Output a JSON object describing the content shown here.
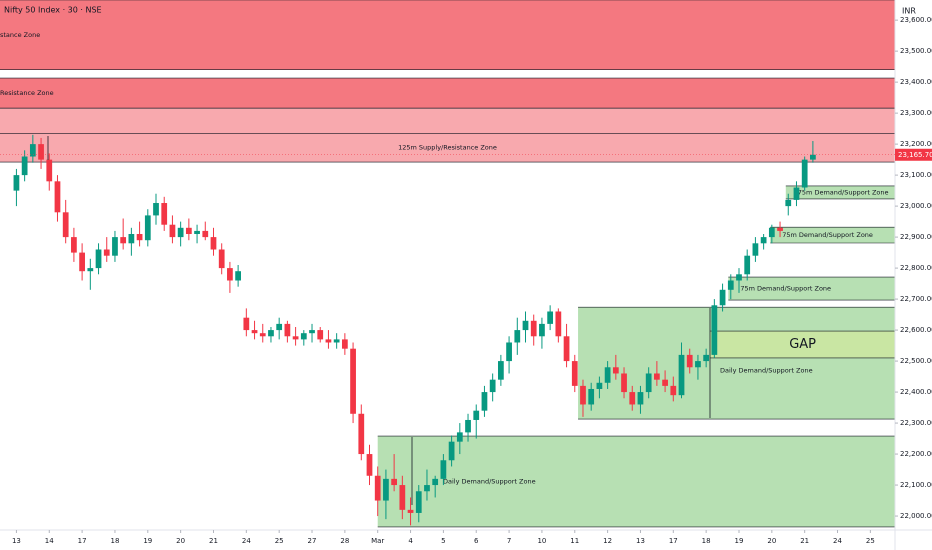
{
  "chart_data": {
    "type": "candlestick",
    "title": "Nifty 50 Index · 30 · NSE",
    "currency": "INR",
    "ylim": [
      21955,
      23665
    ],
    "xlim": [
      -2,
      107
    ],
    "up_color": "#089981",
    "down_color": "#f23645",
    "yticks": [
      {
        "value": 22000,
        "label": "22,000.00"
      },
      {
        "value": 22100,
        "label": "22,100.00"
      },
      {
        "value": 22200,
        "label": "22,200.00"
      },
      {
        "value": 22300,
        "label": "22,300.00"
      },
      {
        "value": 22400,
        "label": "22,400.00"
      },
      {
        "value": 22500,
        "label": "22,500.00"
      },
      {
        "value": 22600,
        "label": "22,600.00"
      },
      {
        "value": 22700,
        "label": "22,700.00"
      },
      {
        "value": 22800,
        "label": "22,800.00"
      },
      {
        "value": 22900,
        "label": "22,900.00"
      },
      {
        "value": 23000,
        "label": "23,000.00"
      },
      {
        "value": 23100,
        "label": "23,100.00"
      },
      {
        "value": 23200,
        "label": "23,200.00"
      },
      {
        "value": 23300,
        "label": "23,300.00"
      },
      {
        "value": 23400,
        "label": "23,400.00"
      },
      {
        "value": 23500,
        "label": "23,500.00"
      },
      {
        "value": 23600,
        "label": "23,600.00"
      }
    ],
    "xticks": [
      {
        "value": 0,
        "label": "13"
      },
      {
        "value": 4,
        "label": "14"
      },
      {
        "value": 8,
        "label": "17"
      },
      {
        "value": 12,
        "label": "18"
      },
      {
        "value": 16,
        "label": "19"
      },
      {
        "value": 20,
        "label": "20"
      },
      {
        "value": 24,
        "label": "21"
      },
      {
        "value": 28,
        "label": "24"
      },
      {
        "value": 32,
        "label": "25"
      },
      {
        "value": 36,
        "label": "27"
      },
      {
        "value": 40,
        "label": "28"
      },
      {
        "value": 44,
        "label": "Mar"
      },
      {
        "value": 48,
        "label": "4"
      },
      {
        "value": 52,
        "label": "5"
      },
      {
        "value": 56,
        "label": "6"
      },
      {
        "value": 60,
        "label": "7"
      },
      {
        "value": 64,
        "label": "10"
      },
      {
        "value": 68,
        "label": "11"
      },
      {
        "value": 72,
        "label": "12"
      },
      {
        "value": 76,
        "label": "13"
      },
      {
        "value": 80,
        "label": "17"
      },
      {
        "value": 84,
        "label": "18"
      },
      {
        "value": 88,
        "label": "19"
      },
      {
        "value": 92,
        "label": "20"
      },
      {
        "value": 96,
        "label": "21"
      },
      {
        "value": 100,
        "label": "24"
      },
      {
        "value": 104,
        "label": "25"
      }
    ],
    "last_price": {
      "value": 23165.7,
      "label": "23,165.70"
    },
    "zones": [
      {
        "lo": 23440,
        "hi": 23665,
        "x0": -2,
        "color": "#f47880",
        "label": "stance Zone"
      },
      {
        "lo": 23316,
        "hi": 23413,
        "x0": -2,
        "color": "#f47880",
        "label": "Resistance Zone"
      },
      {
        "lo": 23235,
        "hi": 23316,
        "x0": -2,
        "color": "#f8a9ae"
      },
      {
        "lo": 23142,
        "hi": 23235,
        "x0": -2,
        "color": "#f8a9ae",
        "label": "125m Supply/Resistance Zone"
      },
      {
        "lo": 23023,
        "hi": 23065,
        "x0": 93.7,
        "color": "#b7e0b3",
        "label": "75m Demand/Support Zone"
      },
      {
        "lo": 22881,
        "hi": 22932,
        "x0": 91.8,
        "color": "#b7e0b3",
        "label": "75m Demand/Support Zone"
      },
      {
        "lo": 22697,
        "hi": 22771,
        "x0": 86.7,
        "color": "#b7e0b3",
        "label": "75m Demand/Support Zone"
      },
      {
        "lo": 22313,
        "hi": 22674,
        "x0": 68.4,
        "color": "#b7e0b3",
        "label": "Daily Demand/Support Zone"
      },
      {
        "lo": 22510,
        "hi": 22597,
        "x0": 84.5,
        "color": "#c9e6a3",
        "label": "GAP"
      },
      {
        "lo": 21965,
        "hi": 22258,
        "x0": 44,
        "color": "#b7e0b3",
        "label": "Daily Demand/Support Zone"
      }
    ],
    "candles": [
      [
        23050,
        23120,
        23000,
        23100
      ],
      [
        23100,
        23180,
        23080,
        23160
      ],
      [
        23160,
        23230,
        23140,
        23200
      ],
      [
        23200,
        23220,
        23120,
        23150
      ],
      [
        23150,
        23170,
        23050,
        23080
      ],
      [
        23080,
        23100,
        22950,
        22980
      ],
      [
        22980,
        23020,
        22880,
        22900
      ],
      [
        22900,
        22930,
        22820,
        22850
      ],
      [
        22850,
        22880,
        22760,
        22790
      ],
      [
        22790,
        22830,
        22730,
        22800
      ],
      [
        22800,
        22880,
        22780,
        22860
      ],
      [
        22860,
        22900,
        22820,
        22840
      ],
      [
        22840,
        22920,
        22820,
        22900
      ],
      [
        22900,
        22960,
        22860,
        22880
      ],
      [
        22880,
        22930,
        22840,
        22910
      ],
      [
        22910,
        22950,
        22870,
        22890
      ],
      [
        22890,
        22990,
        22870,
        22970
      ],
      [
        22970,
        23040,
        22940,
        23010
      ],
      [
        23010,
        23030,
        22920,
        22940
      ],
      [
        22940,
        22970,
        22880,
        22900
      ],
      [
        22900,
        22950,
        22870,
        22930
      ],
      [
        22930,
        22960,
        22890,
        22910
      ],
      [
        22910,
        22940,
        22880,
        22920
      ],
      [
        22920,
        22950,
        22890,
        22900
      ],
      [
        22900,
        22930,
        22840,
        22860
      ],
      [
        22860,
        22880,
        22780,
        22800
      ],
      [
        22800,
        22820,
        22720,
        22760
      ],
      [
        22760,
        22810,
        22740,
        22790
      ],
      [
        22640,
        22670,
        22580,
        22600
      ],
      [
        22600,
        22630,
        22570,
        22590
      ],
      [
        22590,
        22620,
        22560,
        22580
      ],
      [
        22580,
        22610,
        22560,
        22600
      ],
      [
        22600,
        22640,
        22570,
        22620
      ],
      [
        22620,
        22630,
        22560,
        22580
      ],
      [
        22580,
        22610,
        22550,
        22570
      ],
      [
        22570,
        22600,
        22550,
        22590
      ],
      [
        22590,
        22620,
        22560,
        22600
      ],
      [
        22600,
        22610,
        22560,
        22570
      ],
      [
        22570,
        22600,
        22540,
        22560
      ],
      [
        22560,
        22590,
        22540,
        22570
      ],
      [
        22570,
        22590,
        22520,
        22540
      ],
      [
        22540,
        22560,
        22300,
        22330
      ],
      [
        22330,
        22360,
        22180,
        22200
      ],
      [
        22200,
        22230,
        22100,
        22130
      ],
      [
        22130,
        22160,
        22000,
        22050
      ],
      [
        22050,
        22150,
        21990,
        22120
      ],
      [
        22120,
        22200,
        22080,
        22100
      ],
      [
        22100,
        22130,
        21990,
        22020
      ],
      [
        22020,
        22060,
        21970,
        22010
      ],
      [
        22010,
        22100,
        21980,
        22080
      ],
      [
        22080,
        22150,
        22050,
        22100
      ],
      [
        22100,
        22130,
        22060,
        22120
      ],
      [
        22120,
        22200,
        22100,
        22180
      ],
      [
        22180,
        22260,
        22160,
        22240
      ],
      [
        22240,
        22300,
        22200,
        22270
      ],
      [
        22270,
        22330,
        22240,
        22310
      ],
      [
        22310,
        22360,
        22250,
        22340
      ],
      [
        22340,
        22420,
        22320,
        22400
      ],
      [
        22400,
        22460,
        22370,
        22440
      ],
      [
        22440,
        22520,
        22420,
        22500
      ],
      [
        22500,
        22580,
        22460,
        22560
      ],
      [
        22560,
        22640,
        22520,
        22600
      ],
      [
        22600,
        22660,
        22560,
        22630
      ],
      [
        22630,
        22650,
        22550,
        22580
      ],
      [
        22580,
        22640,
        22540,
        22620
      ],
      [
        22620,
        22680,
        22600,
        22660
      ],
      [
        22660,
        22670,
        22560,
        22580
      ],
      [
        22580,
        22620,
        22480,
        22500
      ],
      [
        22500,
        22520,
        22400,
        22420
      ],
      [
        22420,
        22440,
        22320,
        22360
      ],
      [
        22360,
        22430,
        22340,
        22410
      ],
      [
        22410,
        22450,
        22380,
        22430
      ],
      [
        22430,
        22500,
        22410,
        22480
      ],
      [
        22480,
        22520,
        22440,
        22460
      ],
      [
        22460,
        22480,
        22380,
        22400
      ],
      [
        22400,
        22420,
        22340,
        22360
      ],
      [
        22360,
        22420,
        22330,
        22400
      ],
      [
        22400,
        22480,
        22380,
        22460
      ],
      [
        22460,
        22500,
        22420,
        22440
      ],
      [
        22440,
        22470,
        22400,
        22420
      ],
      [
        22420,
        22450,
        22370,
        22390
      ],
      [
        22390,
        22560,
        22380,
        22520
      ],
      [
        22520,
        22540,
        22460,
        22480
      ],
      [
        22480,
        22520,
        22440,
        22500
      ],
      [
        22500,
        22540,
        22480,
        22520
      ],
      [
        22520,
        22700,
        22510,
        22680
      ],
      [
        22680,
        22750,
        22660,
        22730
      ],
      [
        22730,
        22780,
        22700,
        22760
      ],
      [
        22760,
        22800,
        22720,
        22780
      ],
      [
        22780,
        22860,
        22760,
        22840
      ],
      [
        22840,
        22900,
        22820,
        22880
      ],
      [
        22880,
        22910,
        22860,
        22900
      ],
      [
        22900,
        22940,
        22880,
        22930
      ],
      [
        22930,
        22950,
        22900,
        22920
      ],
      [
        23000,
        23040,
        22970,
        23020
      ],
      [
        23020,
        23080,
        23000,
        23060
      ],
      [
        23060,
        23160,
        23050,
        23150
      ],
      [
        23150,
        23210,
        23140,
        23165.7
      ]
    ]
  }
}
